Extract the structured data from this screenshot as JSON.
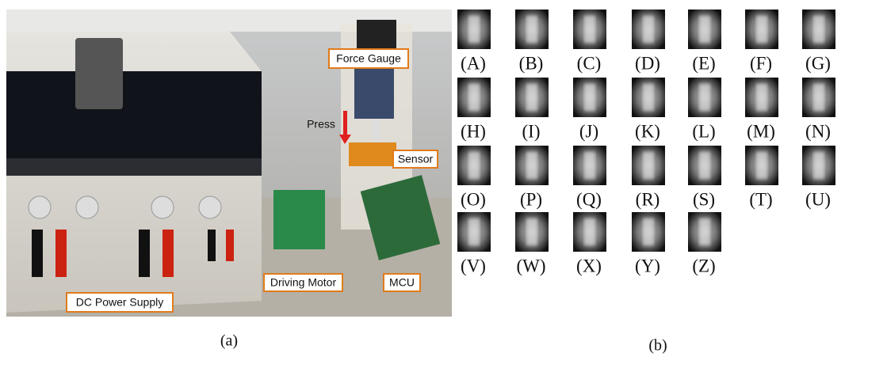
{
  "panel_a": {
    "labels": [
      "Force Gauge",
      "Press",
      "Sensor",
      "Driving Motor",
      "MCU",
      "DC Power Supply"
    ],
    "caption": "(a)"
  },
  "panel_b": {
    "letters": [
      "(A)",
      "(B)",
      "(C)",
      "(D)",
      "(E)",
      "(F)",
      "(G)",
      "(H)",
      "(I)",
      "(J)",
      "(K)",
      "(L)",
      "(M)",
      "(N)",
      "(O)",
      "(P)",
      "(Q)",
      "(R)",
      "(S)",
      "(T)",
      "(U)",
      "(V)",
      "(W)",
      "(X)",
      "(Y)",
      "(Z)"
    ],
    "caption": "(b)"
  }
}
